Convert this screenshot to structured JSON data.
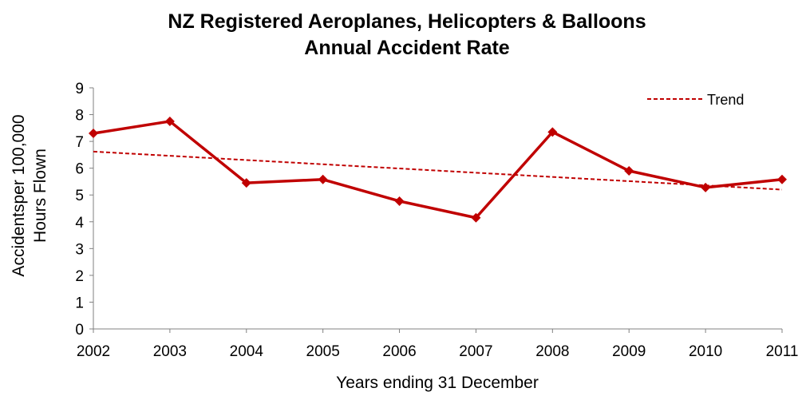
{
  "chart_data": {
    "type": "line",
    "title_line1": "NZ Registered Aeroplanes, Helicopters & Balloons",
    "title_line2": "Annual Accident Rate",
    "xlabel": "Years ending 31 December",
    "ylabel_line1": "Accidentsper 100,000",
    "ylabel_line2": "Hours Flown",
    "x": [
      "2002",
      "2003",
      "2004",
      "2005",
      "2006",
      "2007",
      "2008",
      "2009",
      "2010",
      "2011"
    ],
    "ylim": [
      0,
      9
    ],
    "yticks": [
      "0",
      "1",
      "2",
      "3",
      "4",
      "5",
      "6",
      "7",
      "8",
      "9"
    ],
    "series": [
      {
        "values": [
          7.3,
          7.75,
          5.45,
          5.58,
          4.77,
          4.15,
          7.35,
          5.9,
          5.28,
          5.58
        ],
        "color": "#C00000"
      }
    ],
    "trend": {
      "name": "Trend",
      "start": 6.62,
      "end": 5.2,
      "color": "#C00000"
    },
    "grid": false,
    "legend_position": "top-right"
  }
}
